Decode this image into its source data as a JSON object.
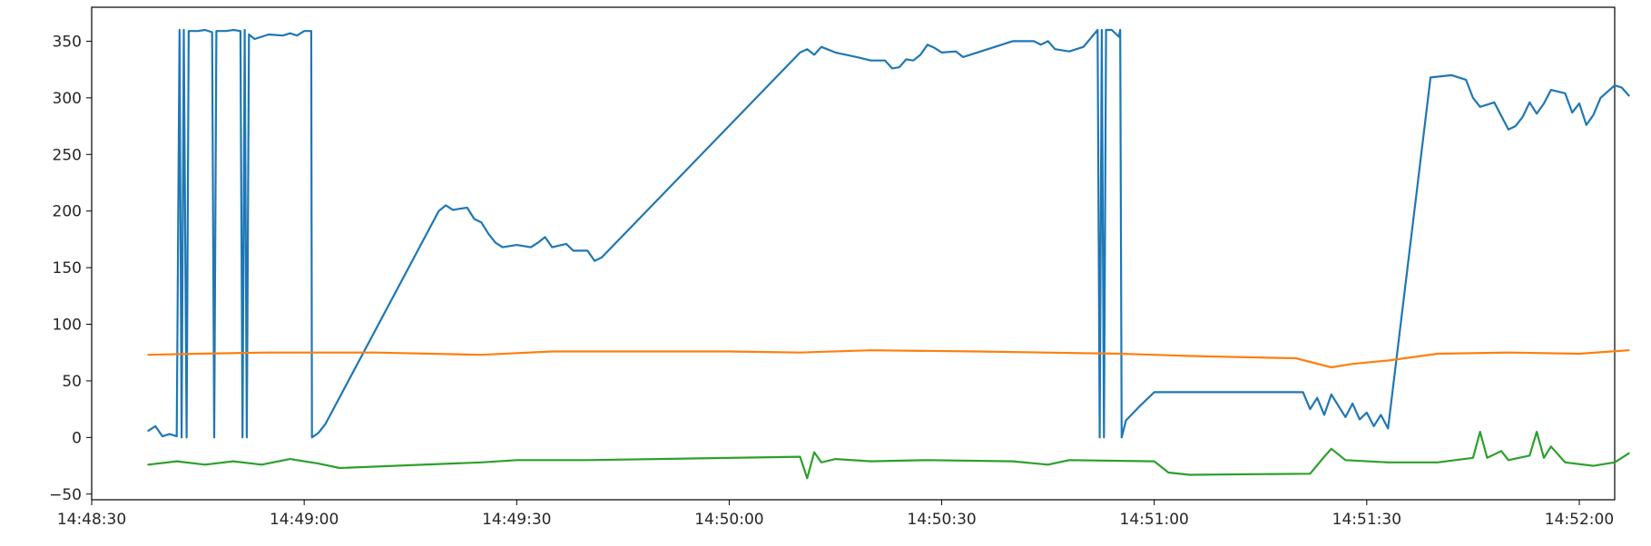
{
  "chart_data": {
    "type": "line",
    "title": "",
    "xlabel": "",
    "ylabel": "",
    "x_axis": {
      "kind": "time",
      "range": [
        "14:48:30",
        "14:52:05"
      ],
      "ticks": [
        "14:48:30",
        "14:49:00",
        "14:49:30",
        "14:50:00",
        "14:50:30",
        "14:51:00",
        "14:51:30",
        "14:52:00"
      ]
    },
    "y_axis": {
      "range": [
        -55,
        380
      ],
      "ticks": [
        350,
        300,
        250,
        200,
        150,
        100,
        50,
        0,
        -50
      ],
      "tick_labels": [
        "350",
        "300",
        "250",
        "200",
        "150",
        "100",
        "50",
        "0",
        "−50"
      ]
    },
    "grid": false,
    "legend": "none",
    "series": [
      {
        "color": "#1f77b4",
        "points": [
          [
            "14:48:38",
            6
          ],
          [
            "14:48:39",
            10
          ],
          [
            "14:48:40",
            1
          ],
          [
            "14:48:41",
            3
          ],
          [
            "14:48:42",
            1
          ],
          [
            "14:48:42.4",
            360
          ],
          [
            "14:48:42.7",
            0
          ],
          [
            "14:48:43",
            360
          ],
          [
            "14:48:43.4",
            0
          ],
          [
            "14:48:43.7",
            359
          ],
          [
            "14:48:45",
            359
          ],
          [
            "14:48:46",
            360
          ],
          [
            "14:48:47",
            358
          ],
          [
            "14:48:47.3",
            0
          ],
          [
            "14:48:47.6",
            359
          ],
          [
            "14:48:49",
            359
          ],
          [
            "14:48:50",
            360
          ],
          [
            "14:48:51",
            359
          ],
          [
            "14:48:51.3",
            0
          ],
          [
            "14:48:51.6",
            360
          ],
          [
            "14:48:51.9",
            0
          ],
          [
            "14:48:52.2",
            356
          ],
          [
            "14:48:53",
            352
          ],
          [
            "14:48:55",
            356
          ],
          [
            "14:48:57",
            355
          ],
          [
            "14:48:58",
            357
          ],
          [
            "14:48:59",
            355
          ],
          [
            "14:49:00",
            359
          ],
          [
            "14:49:01",
            359
          ],
          [
            "14:49:01.1",
            0
          ],
          [
            "14:49:02",
            4
          ],
          [
            "14:49:03",
            12
          ],
          [
            "14:49:19",
            200
          ],
          [
            "14:49:20",
            205
          ],
          [
            "14:49:21",
            201
          ],
          [
            "14:49:23",
            203
          ],
          [
            "14:49:24",
            193
          ],
          [
            "14:49:25",
            190
          ],
          [
            "14:49:26",
            180
          ],
          [
            "14:49:27",
            172
          ],
          [
            "14:49:28",
            168
          ],
          [
            "14:49:30",
            170
          ],
          [
            "14:49:32",
            168
          ],
          [
            "14:49:33",
            172
          ],
          [
            "14:49:34",
            177
          ],
          [
            "14:49:35",
            168
          ],
          [
            "14:49:37",
            171
          ],
          [
            "14:49:38",
            165
          ],
          [
            "14:49:40",
            165
          ],
          [
            "14:49:41",
            156
          ],
          [
            "14:49:42",
            159
          ],
          [
            "14:50:10",
            340
          ],
          [
            "14:50:11",
            343
          ],
          [
            "14:50:12",
            338
          ],
          [
            "14:50:13",
            345
          ],
          [
            "14:50:15",
            340
          ],
          [
            "14:50:18",
            336
          ],
          [
            "14:50:20",
            333
          ],
          [
            "14:50:22",
            333
          ],
          [
            "14:50:23",
            326
          ],
          [
            "14:50:24",
            327
          ],
          [
            "14:50:25",
            334
          ],
          [
            "14:50:26",
            333
          ],
          [
            "14:50:27",
            338
          ],
          [
            "14:50:28",
            347
          ],
          [
            "14:50:29",
            344
          ],
          [
            "14:50:30",
            340
          ],
          [
            "14:50:32",
            341
          ],
          [
            "14:50:33",
            336
          ],
          [
            "14:50:40",
            350
          ],
          [
            "14:50:43",
            350
          ],
          [
            "14:50:44",
            347
          ],
          [
            "14:50:45",
            350
          ],
          [
            "14:50:46",
            343
          ],
          [
            "14:50:48",
            341
          ],
          [
            "14:50:50",
            345
          ],
          [
            "14:50:52",
            360
          ],
          [
            "14:50:52.3",
            0
          ],
          [
            "14:50:52.6",
            360
          ],
          [
            "14:50:52.9",
            0
          ],
          [
            "14:50:53.2",
            360
          ],
          [
            "14:50:54",
            360
          ],
          [
            "14:50:55",
            354
          ],
          [
            "14:50:55.2",
            360
          ],
          [
            "14:50:55.4",
            0
          ],
          [
            "14:50:56",
            15
          ],
          [
            "14:50:58",
            28
          ],
          [
            "14:51:00",
            40
          ],
          [
            "14:51:21",
            40
          ],
          [
            "14:51:22",
            25
          ],
          [
            "14:51:23",
            35
          ],
          [
            "14:51:24",
            20
          ],
          [
            "14:51:25",
            38
          ],
          [
            "14:51:26",
            28
          ],
          [
            "14:51:27",
            18
          ],
          [
            "14:51:28",
            30
          ],
          [
            "14:51:29",
            16
          ],
          [
            "14:51:30",
            22
          ],
          [
            "14:51:31",
            10
          ],
          [
            "14:51:32",
            20
          ],
          [
            "14:51:33",
            8
          ],
          [
            "14:51:39",
            318
          ],
          [
            "14:51:42",
            320
          ],
          [
            "14:51:44",
            316
          ],
          [
            "14:51:45",
            300
          ],
          [
            "14:51:46",
            292
          ],
          [
            "14:51:48",
            296
          ],
          [
            "14:51:50",
            272
          ],
          [
            "14:51:51",
            275
          ],
          [
            "14:51:52",
            283
          ],
          [
            "14:51:53",
            296
          ],
          [
            "14:51:54",
            286
          ],
          [
            "14:51:55",
            295
          ],
          [
            "14:51:56",
            307
          ],
          [
            "14:51:58",
            304
          ],
          [
            "14:51:59",
            287
          ],
          [
            "14:52:00",
            295
          ],
          [
            "14:52:01",
            276
          ],
          [
            "14:52:02",
            285
          ],
          [
            "14:52:03",
            300
          ],
          [
            "14:52:05",
            311
          ],
          [
            "14:52:06",
            309
          ],
          [
            "14:52:07",
            302
          ]
        ]
      },
      {
        "color": "#ff7f0e",
        "points": [
          [
            "14:48:38",
            73
          ],
          [
            "14:48:45",
            74
          ],
          [
            "14:48:55",
            75
          ],
          [
            "14:49:10",
            75
          ],
          [
            "14:49:25",
            73
          ],
          [
            "14:49:35",
            76
          ],
          [
            "14:50:00",
            76
          ],
          [
            "14:50:10",
            75
          ],
          [
            "14:50:20",
            77
          ],
          [
            "14:50:35",
            76
          ],
          [
            "14:50:55",
            74
          ],
          [
            "14:51:00",
            73
          ],
          [
            "14:51:05",
            72
          ],
          [
            "14:51:20",
            70
          ],
          [
            "14:51:25",
            62
          ],
          [
            "14:51:28",
            65
          ],
          [
            "14:51:33",
            68
          ],
          [
            "14:51:40",
            74
          ],
          [
            "14:51:50",
            75
          ],
          [
            "14:52:00",
            74
          ],
          [
            "14:52:07",
            77
          ]
        ]
      },
      {
        "color": "#2ca02c",
        "points": [
          [
            "14:48:38",
            -24
          ],
          [
            "14:48:42",
            -21
          ],
          [
            "14:48:46",
            -24
          ],
          [
            "14:48:50",
            -21
          ],
          [
            "14:48:54",
            -24
          ],
          [
            "14:48:58",
            -19
          ],
          [
            "14:49:02",
            -23
          ],
          [
            "14:49:05",
            -27
          ],
          [
            "14:49:25",
            -22
          ],
          [
            "14:49:30",
            -20
          ],
          [
            "14:49:40",
            -20
          ],
          [
            "14:50:10",
            -17
          ],
          [
            "14:50:11",
            -36
          ],
          [
            "14:50:12",
            -13
          ],
          [
            "14:50:13",
            -22
          ],
          [
            "14:50:15",
            -19
          ],
          [
            "14:50:20",
            -21
          ],
          [
            "14:50:28",
            -20
          ],
          [
            "14:50:40",
            -21
          ],
          [
            "14:50:45",
            -24
          ],
          [
            "14:50:48",
            -20
          ],
          [
            "14:51:00",
            -21
          ],
          [
            "14:51:02",
            -31
          ],
          [
            "14:51:05",
            -33
          ],
          [
            "14:51:22",
            -32
          ],
          [
            "14:51:24",
            -17
          ],
          [
            "14:51:25",
            -10
          ],
          [
            "14:51:27",
            -20
          ],
          [
            "14:51:33",
            -22
          ],
          [
            "14:51:40",
            -22
          ],
          [
            "14:51:45",
            -18
          ],
          [
            "14:51:46",
            5
          ],
          [
            "14:51:47",
            -18
          ],
          [
            "14:51:49",
            -12
          ],
          [
            "14:51:50",
            -20
          ],
          [
            "14:51:53",
            -16
          ],
          [
            "14:51:54",
            5
          ],
          [
            "14:51:55",
            -18
          ],
          [
            "14:51:56",
            -8
          ],
          [
            "14:51:58",
            -22
          ],
          [
            "14:52:02",
            -25
          ],
          [
            "14:52:05",
            -22
          ],
          [
            "14:52:07",
            -14
          ]
        ]
      }
    ]
  }
}
